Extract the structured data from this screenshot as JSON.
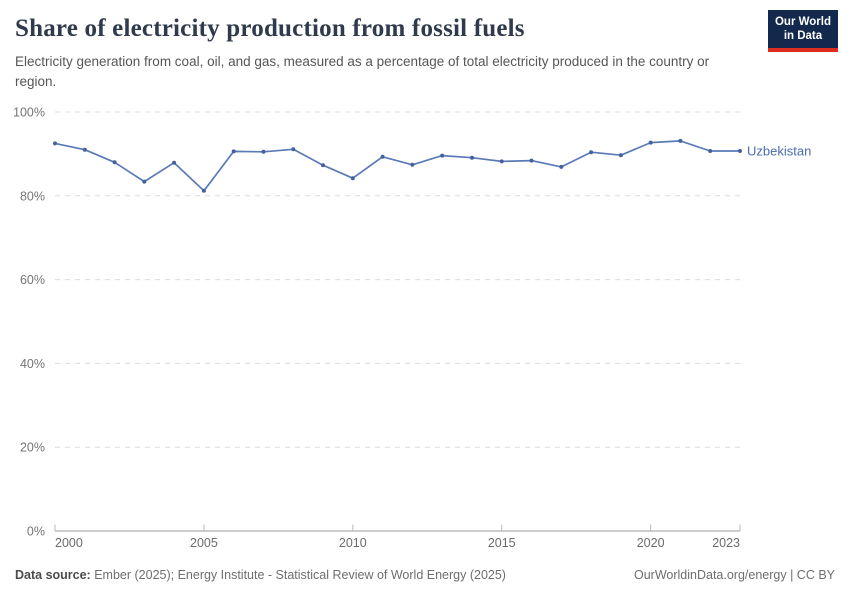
{
  "header": {
    "title": "Share of electricity production from fossil fuels",
    "subtitle": "Electricity generation from coal, oil, and gas, measured as a percentage of total electricity produced in the country or region.",
    "logo": {
      "line1": "Our World",
      "line2": "in Data"
    },
    "logo_colors": {
      "background": "#12294d",
      "bar": "#dc2d20",
      "text": "#ffffff"
    }
  },
  "chart_data": {
    "type": "line",
    "title": "Share of electricity production from fossil fuels",
    "entity": "Uzbekistan",
    "x": [
      2000,
      2001,
      2002,
      2003,
      2004,
      2005,
      2006,
      2007,
      2008,
      2009,
      2010,
      2011,
      2012,
      2013,
      2014,
      2015,
      2016,
      2017,
      2018,
      2019,
      2020,
      2021,
      2022,
      2023
    ],
    "values": [
      92.5,
      91.0,
      88.0,
      83.4,
      87.9,
      81.2,
      90.6,
      90.5,
      91.1,
      87.3,
      84.2,
      89.3,
      87.4,
      89.6,
      89.1,
      88.2,
      88.4,
      86.9,
      90.4,
      89.7,
      92.7,
      93.1,
      90.7,
      90.7
    ],
    "ylim": [
      0,
      100
    ],
    "yticks": [
      0,
      20,
      40,
      60,
      80,
      100
    ],
    "ytick_suffix": "%",
    "xticks": [
      2000,
      2005,
      2010,
      2015,
      2020,
      2023
    ],
    "grid": true,
    "legend_position": "line-end-label",
    "line_color": "#5b7ab8",
    "marker_color": "#44619f",
    "entity_label_color": "#4a6cae",
    "gridline_color": "#dcdcdc",
    "axis_line_color": "#9e9e9e",
    "tick_text_color": "#757575"
  },
  "footer": {
    "data_source_label": "Data source:",
    "data_source": " Ember (2025); Energy Institute - Statistical Review of World Energy (2025)",
    "credit": "OurWorldinData.org/energy | CC BY"
  }
}
